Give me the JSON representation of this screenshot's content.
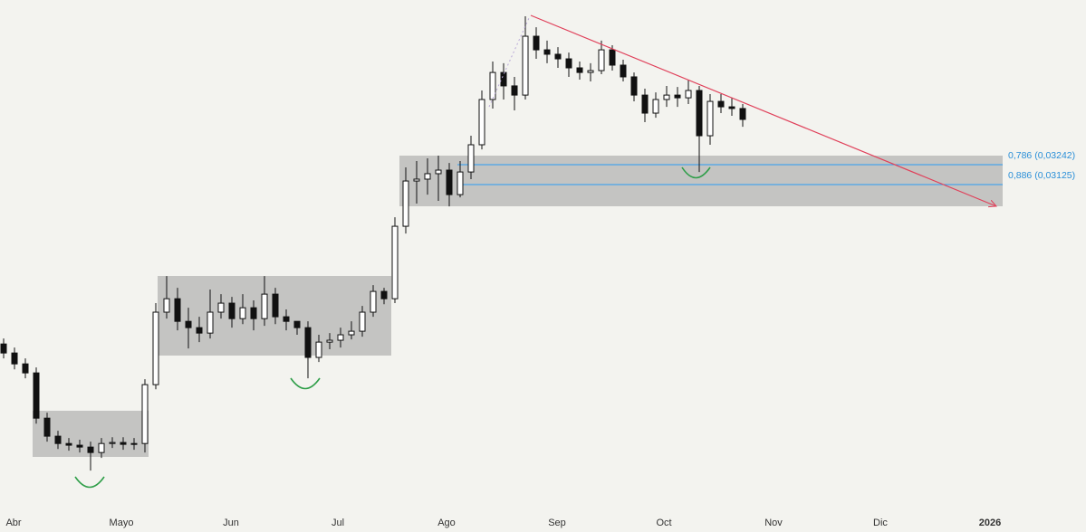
{
  "chart_data": {
    "type": "candlestick",
    "up_color": "#ffffff",
    "down_color": "#111111",
    "wick_color": "#111111",
    "categories": [
      "Abr",
      "Mayo",
      "Jun",
      "Jul",
      "Ago",
      "Sep",
      "Oct",
      "Nov",
      "Dic",
      "2026"
    ],
    "fib_levels": [
      {
        "label": "0,786 (0,03242)",
        "price": 0.03242,
        "color": "#2a9df4"
      },
      {
        "label": "0,886 (0,03125)",
        "price": 0.03125,
        "color": "#2a9df4"
      }
    ],
    "open": [
      0.02188,
      0.02135,
      0.02071,
      0.02018,
      0.01752,
      0.01646,
      0.01603,
      0.01593,
      0.01582,
      0.0155,
      0.01603,
      0.01609,
      0.01598,
      0.01603,
      0.01949,
      0.02375,
      0.02454,
      0.02321,
      0.02284,
      0.02252,
      0.02375,
      0.02428,
      0.02337,
      0.02401,
      0.02337,
      0.02481,
      0.02348,
      0.02321,
      0.02284,
      0.02109,
      0.02199,
      0.0221,
      0.02242,
      0.02263,
      0.02375,
      0.02497,
      0.02454,
      0.0288,
      0.03146,
      0.03157,
      0.03189,
      0.0321,
      0.03066,
      0.03199,
      0.03359,
      0.03625,
      0.03784,
      0.03705,
      0.03651,
      0.03997,
      0.03917,
      0.03891,
      0.03864,
      0.03811,
      0.03784,
      0.03795,
      0.03917,
      0.03827,
      0.03758,
      0.03651,
      0.03545,
      0.03625,
      0.03651,
      0.03635,
      0.03678,
      0.03412,
      0.03614,
      0.03582,
      0.03572
    ],
    "high": [
      0.0222,
      0.02167,
      0.02103,
      0.0205,
      0.01784,
      0.01678,
      0.01635,
      0.01625,
      0.01614,
      0.01635,
      0.0164,
      0.0164,
      0.01635,
      0.01981,
      0.02428,
      0.02587,
      0.02518,
      0.02401,
      0.02348,
      0.02508,
      0.02481,
      0.02465,
      0.02481,
      0.02444,
      0.02587,
      0.02518,
      0.02391,
      0.02321,
      0.02321,
      0.02242,
      0.02252,
      0.02284,
      0.02321,
      0.02412,
      0.02534,
      0.02518,
      0.02933,
      0.03226,
      0.03263,
      0.03279,
      0.03295,
      0.03252,
      0.03263,
      0.03412,
      0.03678,
      0.03848,
      0.03838,
      0.03758,
      0.04114,
      0.0405,
      0.03971,
      0.03933,
      0.03901,
      0.03848,
      0.03838,
      0.03971,
      0.03944,
      0.03859,
      0.03784,
      0.03689,
      0.03667,
      0.03705,
      0.03699,
      0.03742,
      0.03705,
      0.03657,
      0.03657,
      0.03635,
      0.03598
    ],
    "low": [
      0.02103,
      0.02039,
      0.01986,
      0.0172,
      0.01614,
      0.01571,
      0.01561,
      0.0155,
      0.01444,
      0.01518,
      0.01577,
      0.01566,
      0.01566,
      0.0155,
      0.01922,
      0.02337,
      0.02268,
      0.02162,
      0.02199,
      0.0222,
      0.02337,
      0.02284,
      0.02305,
      0.02268,
      0.02295,
      0.02305,
      0.02268,
      0.02242,
      0.01986,
      0.02082,
      0.02157,
      0.02167,
      0.02215,
      0.02231,
      0.02348,
      0.02422,
      0.02428,
      0.02837,
      0.03013,
      0.03066,
      0.03029,
      0.02997,
      0.0305,
      0.03157,
      0.03332,
      0.03572,
      0.03625,
      0.03561,
      0.03625,
      0.03864,
      0.03838,
      0.03811,
      0.03758,
      0.03742,
      0.03731,
      0.03774,
      0.03795,
      0.03731,
      0.03614,
      0.03492,
      0.03518,
      0.03582,
      0.03582,
      0.03598,
      0.03199,
      0.03359,
      0.03545,
      0.03529,
      0.03465
    ],
    "close": [
      0.02135,
      0.02071,
      0.02018,
      0.01752,
      0.01646,
      0.01603,
      0.01593,
      0.01582,
      0.0155,
      0.01603,
      0.01609,
      0.01598,
      0.01603,
      0.01949,
      0.02375,
      0.02454,
      0.02321,
      0.02284,
      0.02252,
      0.02375,
      0.02428,
      0.02337,
      0.02401,
      0.02337,
      0.02481,
      0.02348,
      0.02321,
      0.02284,
      0.02109,
      0.02199,
      0.0221,
      0.02242,
      0.02263,
      0.02375,
      0.02497,
      0.02454,
      0.0288,
      0.03146,
      0.03157,
      0.03189,
      0.0321,
      0.03066,
      0.03199,
      0.03359,
      0.03625,
      0.03784,
      0.03705,
      0.03651,
      0.03997,
      0.03917,
      0.03891,
      0.03864,
      0.03811,
      0.03784,
      0.03795,
      0.03917,
      0.03827,
      0.03758,
      0.03651,
      0.03545,
      0.03625,
      0.03651,
      0.03635,
      0.03678,
      0.03412,
      0.03614,
      0.03582,
      0.03572,
      0.03508
    ]
  }
}
